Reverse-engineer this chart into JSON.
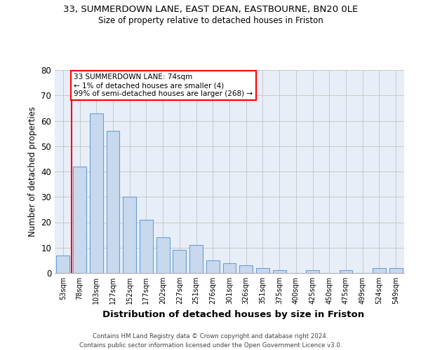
{
  "title1": "33, SUMMERDOWN LANE, EAST DEAN, EASTBOURNE, BN20 0LE",
  "title2": "Size of property relative to detached houses in Friston",
  "xlabel": "Distribution of detached houses by size in Friston",
  "ylabel": "Number of detached properties",
  "bins": [
    "53sqm",
    "78sqm",
    "103sqm",
    "127sqm",
    "152sqm",
    "177sqm",
    "202sqm",
    "227sqm",
    "251sqm",
    "276sqm",
    "301sqm",
    "326sqm",
    "351sqm",
    "375sqm",
    "400sqm",
    "425sqm",
    "450sqm",
    "475sqm",
    "499sqm",
    "524sqm",
    "549sqm"
  ],
  "values": [
    7,
    42,
    63,
    56,
    30,
    21,
    14,
    9,
    11,
    5,
    4,
    3,
    2,
    1,
    0,
    1,
    0,
    1,
    0,
    2,
    2
  ],
  "bar_color": "#c8d9ee",
  "bar_edge_color": "#6a9fd8",
  "red_line_index": 1,
  "annotation_text": "33 SUMMERDOWN LANE: 74sqm\n← 1% of detached houses are smaller (4)\n99% of semi-detached houses are larger (268) →",
  "annotation_box_color": "white",
  "annotation_box_edge_color": "red",
  "red_line_color": "red",
  "footer1": "Contains HM Land Registry data © Crown copyright and database right 2024.",
  "footer2": "Contains public sector information licensed under the Open Government Licence v3.0.",
  "ylim": [
    0,
    80
  ],
  "yticks": [
    0,
    10,
    20,
    30,
    40,
    50,
    60,
    70,
    80
  ],
  "grid_color": "#c8c8c8",
  "background_color": "#e8eef8"
}
